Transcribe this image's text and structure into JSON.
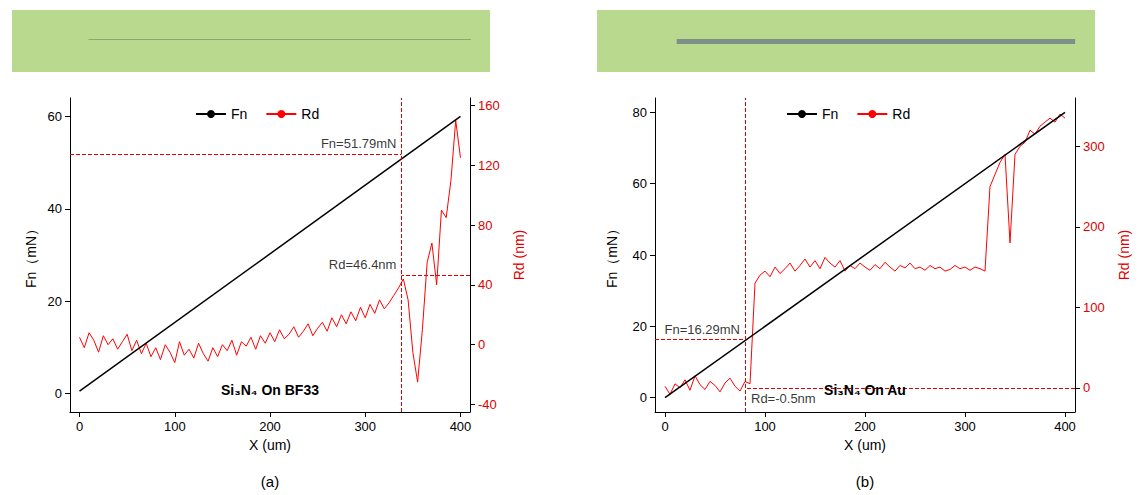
{
  "chart_data": [
    {
      "type": "line",
      "panel": "(a)",
      "subtitle": "Si₃N₄ On BF33",
      "x_label": "X (um)",
      "y_label": "Fn（mN）",
      "y2_label": "Rd (nm)",
      "xlim": [
        -10,
        410
      ],
      "xticks": [
        0,
        100,
        200,
        300,
        400
      ],
      "ylim": [
        -4,
        64
      ],
      "yticks": [
        0,
        20,
        40,
        60
      ],
      "y2lim": [
        -45,
        165
      ],
      "y2ticks": [
        -40,
        0,
        40,
        80,
        120,
        160
      ],
      "legend": "top",
      "grid": false,
      "series": [
        {
          "name": "Fn",
          "color": "#000000",
          "axis": "y",
          "x": [
            0,
            400
          ],
          "values": [
            0.5,
            60
          ]
        },
        {
          "name": "Rd",
          "color": "#ff0000",
          "axis": "y2",
          "x": [
            0,
            5,
            10,
            15,
            20,
            25,
            30,
            35,
            40,
            45,
            50,
            55,
            60,
            65,
            70,
            75,
            80,
            85,
            90,
            95,
            100,
            105,
            110,
            115,
            120,
            125,
            130,
            135,
            140,
            145,
            150,
            155,
            160,
            165,
            170,
            175,
            180,
            185,
            190,
            195,
            200,
            205,
            210,
            215,
            220,
            225,
            230,
            235,
            240,
            245,
            250,
            255,
            260,
            265,
            270,
            275,
            280,
            285,
            290,
            295,
            300,
            305,
            310,
            315,
            320,
            325,
            330,
            335,
            340,
            345,
            350,
            355,
            360,
            365,
            370,
            375,
            380,
            385,
            390,
            395,
            400
          ],
          "values": [
            5,
            -2,
            8,
            3,
            -5,
            6,
            0,
            4,
            -3,
            2,
            7,
            -4,
            3,
            -6,
            1,
            -8,
            -2,
            -10,
            0,
            -5,
            -12,
            2,
            -7,
            -3,
            -9,
            1,
            -6,
            -11,
            -2,
            -8,
            0,
            -4,
            3,
            -7,
            2,
            -1,
            5,
            -3,
            6,
            1,
            8,
            2,
            10,
            4,
            7,
            12,
            5,
            9,
            14,
            6,
            11,
            15,
            9,
            18,
            12,
            20,
            14,
            22,
            16,
            25,
            18,
            27,
            21,
            30,
            24,
            28,
            33,
            38,
            44,
            30,
            -5,
            -25,
            10,
            55,
            68,
            40,
            90,
            85,
            110,
            150,
            125
          ]
        }
      ],
      "annotations": [
        {
          "text": "Fn=51.79mN",
          "x": 338,
          "y": 51.79,
          "axis": "y"
        },
        {
          "text": "Rd=46.4nm",
          "x": 338,
          "y": 46.4,
          "axis": "y2"
        }
      ]
    },
    {
      "type": "line",
      "panel": "(b)",
      "subtitle": "Si₃N₄ On Au",
      "x_label": "X (um)",
      "y_label": "Fn（mN）",
      "y2_label": "Rd (nm)",
      "xlim": [
        -10,
        410
      ],
      "xticks": [
        0,
        100,
        200,
        300,
        400
      ],
      "ylim": [
        -4,
        84
      ],
      "yticks": [
        0,
        20,
        40,
        60,
        80
      ],
      "y2lim": [
        -30,
        360
      ],
      "y2ticks": [
        0,
        100,
        200,
        300
      ],
      "legend": "top",
      "grid": false,
      "series": [
        {
          "name": "Fn",
          "color": "#000000",
          "axis": "y",
          "x": [
            0,
            400
          ],
          "values": [
            0,
            80
          ]
        },
        {
          "name": "Rd",
          "color": "#ff0000",
          "axis": "y2",
          "x": [
            0,
            5,
            10,
            15,
            20,
            25,
            30,
            35,
            40,
            45,
            50,
            55,
            60,
            65,
            70,
            75,
            80,
            85,
            90,
            95,
            100,
            105,
            110,
            115,
            120,
            125,
            130,
            135,
            140,
            145,
            150,
            155,
            160,
            165,
            170,
            175,
            180,
            185,
            190,
            195,
            200,
            205,
            210,
            215,
            220,
            225,
            230,
            235,
            240,
            245,
            250,
            255,
            260,
            265,
            270,
            275,
            280,
            285,
            290,
            295,
            300,
            305,
            310,
            315,
            320,
            325,
            330,
            335,
            340,
            345,
            350,
            355,
            360,
            365,
            370,
            375,
            380,
            385,
            390,
            395,
            400
          ],
          "values": [
            2,
            -8,
            5,
            0,
            10,
            -3,
            15,
            4,
            -2,
            8,
            3,
            -5,
            6,
            12,
            2,
            -4,
            8,
            5,
            130,
            140,
            145,
            138,
            150,
            142,
            148,
            155,
            145,
            152,
            160,
            150,
            158,
            148,
            162,
            155,
            150,
            158,
            145,
            152,
            148,
            155,
            150,
            146,
            153,
            148,
            156,
            150,
            145,
            152,
            149,
            155,
            148,
            150,
            146,
            152,
            148,
            150,
            145,
            147,
            152,
            148,
            150,
            146,
            150,
            148,
            145,
            250,
            265,
            280,
            290,
            180,
            290,
            300,
            305,
            320,
            315,
            325,
            330,
            335,
            330,
            340,
            335
          ]
        }
      ],
      "annotations": [
        {
          "text": "Fn=16.29mN",
          "x": 80,
          "y": 16.29,
          "axis": "y"
        },
        {
          "text": "Rd=-0.5nm",
          "x": 80,
          "y": -0.5,
          "axis": "y2"
        }
      ]
    }
  ]
}
